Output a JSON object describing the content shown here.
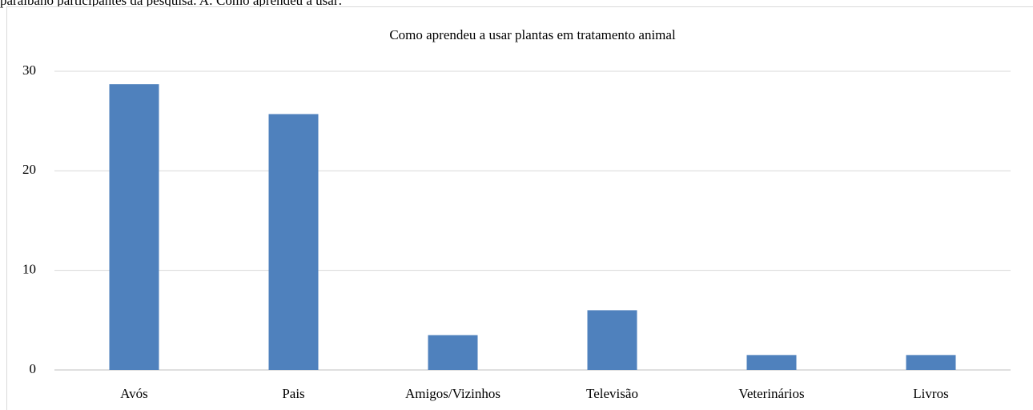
{
  "caption": "paraibano participantes da pesquisa. A: Como aprendeu a usar:",
  "chart_data": {
    "type": "bar",
    "title": "Como aprendeu a usar plantas em tratamento animal",
    "categories": [
      "Avós",
      "Pais",
      "Amigos/Vizinhos",
      "Televisão",
      "Veterinários",
      "Livros"
    ],
    "values": [
      28.7,
      25.7,
      3.5,
      6,
      1.5,
      1.5
    ],
    "color": "#4f81bd",
    "ylim": [
      0,
      30
    ],
    "yticks": [
      0,
      10,
      20,
      30
    ],
    "grid": true
  }
}
